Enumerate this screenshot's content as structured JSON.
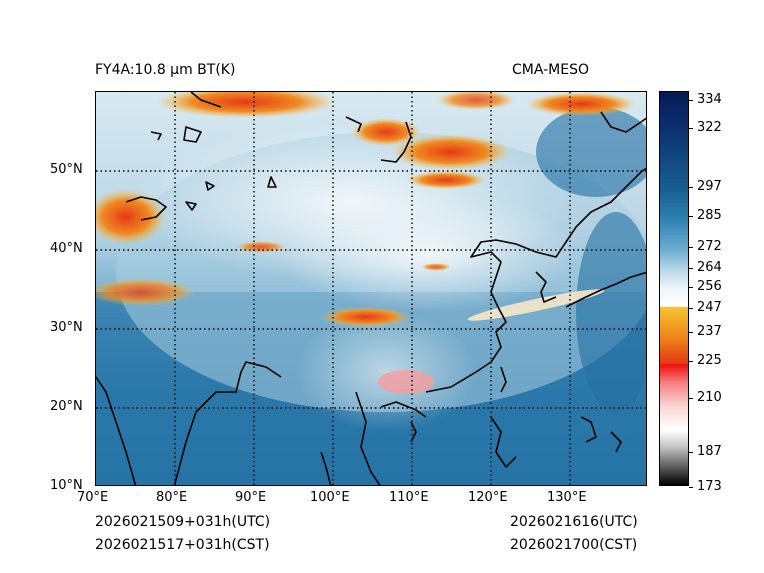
{
  "header": {
    "product_title": "FY4A:10.8 µm BT(K)",
    "model_name": "CMA-MESO"
  },
  "footer": {
    "init_utc": "2026021509+031h(UTC)",
    "init_cst": "2026021517+031h(CST)",
    "valid_utc": "2026021616(UTC)",
    "valid_cst": "2026021700(CST)"
  },
  "map": {
    "lon_labels": [
      "70°E",
      "80°E",
      "90°E",
      "100°E",
      "110°E",
      "120°E",
      "130°E"
    ],
    "lat_labels": [
      "10°N",
      "20°N",
      "30°N",
      "40°N",
      "50°N"
    ],
    "lon_range": [
      70,
      140
    ],
    "lat_range": [
      10,
      60
    ]
  },
  "colorbar": {
    "ticks": [
      "334",
      "322",
      "297",
      "285",
      "272",
      "264",
      "256",
      "247",
      "237",
      "225",
      "210",
      "187",
      "173"
    ]
  },
  "colors": {
    "ocean_deep": "#1f6ea1",
    "land_mid": "#5fa0c6",
    "cloud_cold": "#eef5f8",
    "cloud_very_cold": "#e8451e",
    "cloud_warm_edge": "#f5b42a",
    "coastline": "#000000"
  }
}
